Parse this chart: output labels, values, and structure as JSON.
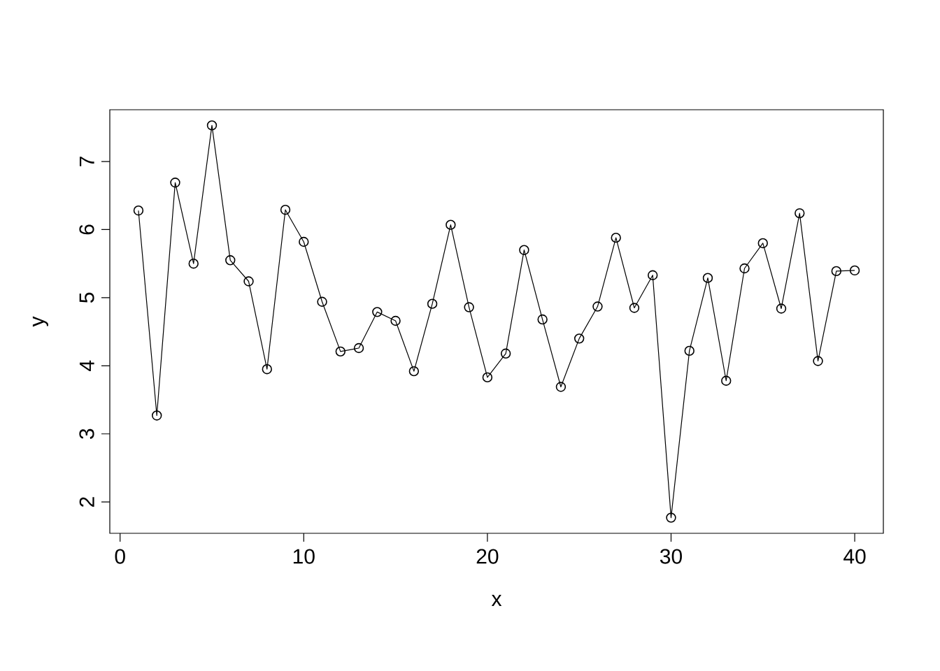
{
  "chart_data": {
    "type": "line",
    "xlabel": "x",
    "ylabel": "y",
    "x": [
      1,
      2,
      3,
      4,
      5,
      6,
      7,
      8,
      9,
      10,
      11,
      12,
      13,
      14,
      15,
      16,
      17,
      18,
      19,
      20,
      21,
      22,
      23,
      24,
      25,
      26,
      27,
      28,
      29,
      30,
      31,
      32,
      33,
      34,
      35,
      36,
      37,
      38,
      39,
      40
    ],
    "series": [
      {
        "color": "#000000",
        "values": [
          6.28,
          3.27,
          6.69,
          5.5,
          7.53,
          5.55,
          5.24,
          3.95,
          6.29,
          5.82,
          4.94,
          4.21,
          4.26,
          4.79,
          4.66,
          3.92,
          4.91,
          6.07,
          4.86,
          3.83,
          4.18,
          5.7,
          4.68,
          3.69,
          4.4,
          4.87,
          5.88,
          4.85,
          5.33,
          1.77,
          4.22,
          5.29,
          3.78,
          5.43,
          5.8,
          4.84,
          6.24,
          4.07,
          5.39,
          5.4
        ]
      }
    ],
    "xlim": [
      -0.56,
      41.56
    ],
    "ylim": [
      1.54,
      7.76
    ],
    "xticks": [
      0,
      10,
      20,
      30,
      40
    ],
    "yticks": [
      2,
      3,
      4,
      5,
      6,
      7
    ],
    "marker": "circle",
    "line_style": "solid",
    "grid": false
  }
}
